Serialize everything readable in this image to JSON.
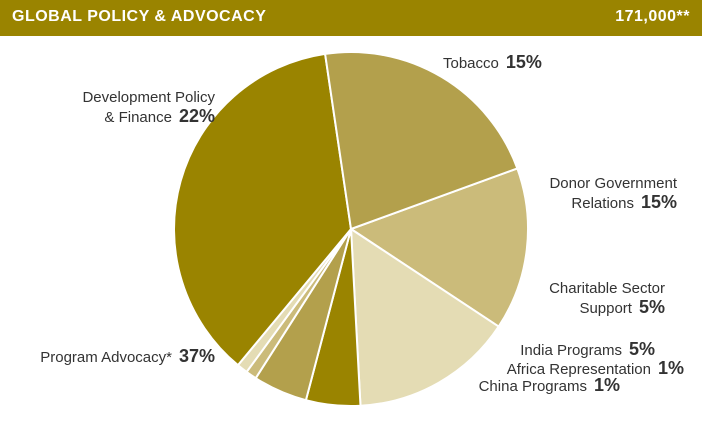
{
  "header": {
    "title": "GLOBAL POLICY & ADVOCACY",
    "total": "171,000**"
  },
  "chart_data": {
    "type": "pie",
    "title": "GLOBAL POLICY & ADVOCACY",
    "total_label": "171,000**",
    "slices": [
      {
        "label_lines": [
          "Tobacco"
        ],
        "percent_label": "15%",
        "value": 15,
        "color": "#cbbb7a"
      },
      {
        "label_lines": [
          "Donor Government",
          "Relations"
        ],
        "percent_label": "15%",
        "value": 15,
        "color": "#e4dcb4"
      },
      {
        "label_lines": [
          "Charitable Sector",
          "Support"
        ],
        "percent_label": "5%",
        "value": 5,
        "color": "#9a8400"
      },
      {
        "label_lines": [
          "India Programs"
        ],
        "percent_label": "5%",
        "value": 5,
        "color": "#b3a04c"
      },
      {
        "label_lines": [
          "Africa Representation"
        ],
        "percent_label": "1%",
        "value": 1,
        "color": "#cbbb7a"
      },
      {
        "label_lines": [
          "China Programs"
        ],
        "percent_label": "1%",
        "value": 1,
        "color": "#e4dcb4"
      },
      {
        "label_lines": [
          "Program Advocacy*"
        ],
        "percent_label": "37%",
        "value": 37,
        "color": "#9a8400"
      },
      {
        "label_lines": [
          "Development Policy",
          "& Finance"
        ],
        "percent_label": "22%",
        "value": 22,
        "color": "#b3a04c"
      }
    ]
  }
}
